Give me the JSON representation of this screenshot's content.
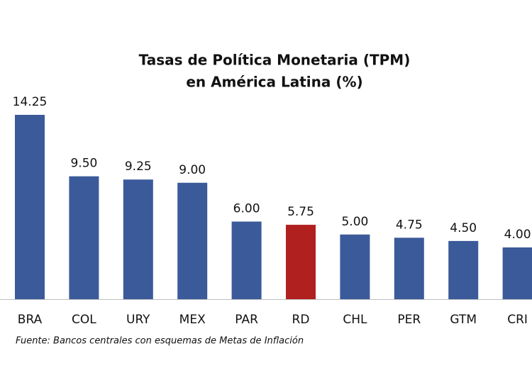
{
  "chart_data": {
    "type": "bar",
    "title": [
      "Tasas de Política Monetaria (TPM)",
      "en América Latina (%)"
    ],
    "categories": [
      "BRA",
      "COL",
      "URY",
      "MEX",
      "PAR",
      "RD",
      "CHL",
      "PER",
      "GTM",
      "CRI"
    ],
    "values": [
      14.25,
      9.5,
      9.25,
      9,
      6,
      5.75,
      5,
      4.75,
      4.5,
      4
    ],
    "value_labels": [
      "14.25",
      "9.50",
      "9.25",
      "9.00",
      "6.00",
      "5.75",
      "5.00",
      "4.75",
      "4.50",
      "4.00"
    ],
    "colors": [
      "#3b5a9a",
      "#3b5a9a",
      "#3b5a9a",
      "#3b5a9a",
      "#3b5a9a",
      "#b0201f",
      "#3b5a9a",
      "#3b5a9a",
      "#3b5a9a",
      "#3b5a9a"
    ],
    "source": "Fuente: Bancos centrales con esquemas de Metas de Inflación"
  }
}
